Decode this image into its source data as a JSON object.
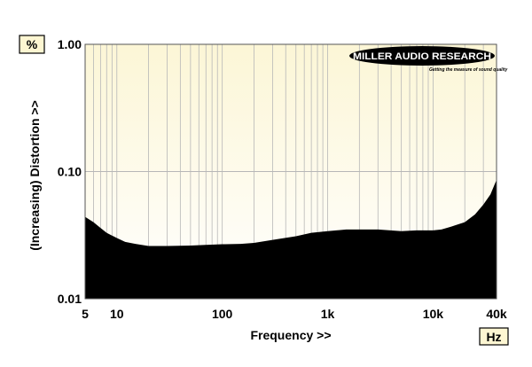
{
  "chart_data": {
    "type": "area",
    "title": "",
    "xlabel": "Frequency >>",
    "ylabel": "(Increasing) Distortion >>",
    "y_unit_label": "%",
    "x_unit_label": "Hz",
    "x_scale": "log",
    "y_scale": "log",
    "xlim": [
      5,
      40000
    ],
    "ylim": [
      0.01,
      1.0
    ],
    "x_ticks": [
      {
        "value": 5,
        "label": "5"
      },
      {
        "value": 10,
        "label": "10"
      },
      {
        "value": 100,
        "label": "100"
      },
      {
        "value": 1000,
        "label": "1k"
      },
      {
        "value": 10000,
        "label": "10k"
      },
      {
        "value": 40000,
        "label": "40k"
      }
    ],
    "y_ticks": [
      {
        "value": 0.01,
        "label": "0.01"
      },
      {
        "value": 0.1,
        "label": "0.10"
      },
      {
        "value": 1.0,
        "label": "1.00"
      }
    ],
    "grid": true,
    "fill_color": "#000000",
    "background_color": "#fdf9e0",
    "series": [
      {
        "x": [
          5,
          6,
          7,
          8,
          10,
          12,
          15,
          20,
          30,
          50,
          70,
          100,
          150,
          200,
          300,
          500,
          700,
          1000,
          1500,
          2000,
          3000,
          5000,
          7000,
          10000,
          12000,
          15000,
          20000,
          25000,
          30000,
          35000,
          40000
        ],
        "values": [
          0.044,
          0.04,
          0.036,
          0.033,
          0.03,
          0.028,
          0.027,
          0.026,
          0.026,
          0.0262,
          0.0265,
          0.0268,
          0.027,
          0.0275,
          0.029,
          0.031,
          0.033,
          0.034,
          0.035,
          0.035,
          0.035,
          0.034,
          0.0345,
          0.0345,
          0.035,
          0.037,
          0.04,
          0.046,
          0.055,
          0.066,
          0.086
        ]
      }
    ]
  },
  "logo": {
    "brand": "MILLER AUDIO RESEARCH",
    "tagline": "Getting the measure of sound quality"
  },
  "colors": {
    "plot_background": "#fdf9e0",
    "plot_background_bottom": "#ffffff",
    "gridline": "#b7b7b7",
    "unit_box_fill": "#fdf6d2"
  }
}
